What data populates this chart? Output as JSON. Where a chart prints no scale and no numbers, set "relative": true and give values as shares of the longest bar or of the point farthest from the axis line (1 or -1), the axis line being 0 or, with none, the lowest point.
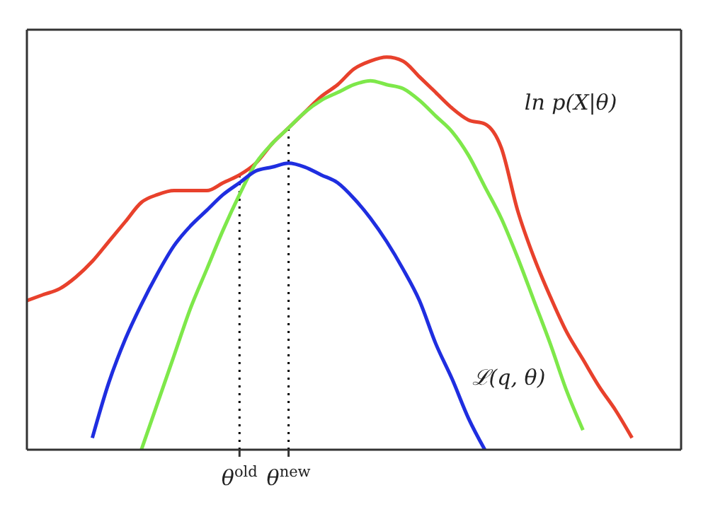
{
  "chart_data": {
    "type": "line",
    "relative": true,
    "marker": "none",
    "line_style": "solid",
    "categories": [
      null,
      null,
      null,
      null,
      null,
      null,
      null,
      null,
      null,
      null,
      null,
      null,
      null,
      "θ$^{old}$",
      null,
      null,
      "θ$^{new}$",
      null,
      null,
      null,
      null,
      null,
      null,
      null,
      null,
      null,
      null,
      null,
      null,
      null,
      null,
      null,
      null,
      null,
      null,
      null,
      null,
      null,
      null,
      null,
      null
    ],
    "ref_lines": [
      {
        "axis": "x",
        "value": "θ$^{old}$",
        "line_style": "dotted",
        "color": "#000000"
      },
      {
        "axis": "x",
        "value": "θ$^{new}$",
        "line_style": "dotted",
        "color": "#000000"
      }
    ],
    "series": [
      {
        "name": "ln p(X|θ)",
        "color": "#e8412c",
        "values": [
          0.38,
          0.395,
          0.41,
          0.44,
          0.48,
          0.53,
          0.58,
          0.63,
          0.65,
          0.66,
          0.66,
          0.66,
          0.68,
          0.7,
          0.73,
          0.78,
          0.82,
          0.86,
          0.9,
          0.93,
          0.97,
          0.99,
          1,
          0.99,
          0.95,
          0.91,
          0.87,
          0.84,
          0.83,
          0.77,
          0.61,
          0.49,
          0.39,
          0.3,
          0.23,
          0.16,
          0.1,
          0.03,
          null,
          null,
          null
        ]
      },
      {
        "color": "#7ee84a",
        "values": [
          null,
          null,
          null,
          null,
          null,
          null,
          null,
          0,
          0.12,
          0.24,
          0.36,
          0.46,
          0.56,
          0.65,
          0.73,
          0.78,
          0.82,
          0.86,
          0.89,
          0.91,
          0.93,
          0.94,
          0.93,
          0.92,
          0.89,
          0.85,
          0.81,
          0.75,
          0.67,
          0.59,
          0.49,
          0.38,
          0.27,
          0.15,
          0.05,
          null,
          null,
          null,
          null,
          null,
          null
        ]
      },
      {
        "name": "ℒ(q, θ)",
        "color": "#1f2ee0",
        "values": [
          null,
          null,
          null,
          null,
          0.03,
          0.17,
          0.28,
          0.37,
          0.45,
          0.52,
          0.57,
          0.61,
          0.65,
          0.68,
          0.71,
          0.72,
          0.73,
          0.72,
          0.7,
          0.68,
          0.64,
          0.59,
          0.53,
          0.46,
          0.38,
          0.27,
          0.18,
          0.08,
          0,
          null,
          null,
          null,
          null,
          null,
          null,
          null,
          null,
          null,
          null,
          null,
          null
        ]
      }
    ]
  }
}
